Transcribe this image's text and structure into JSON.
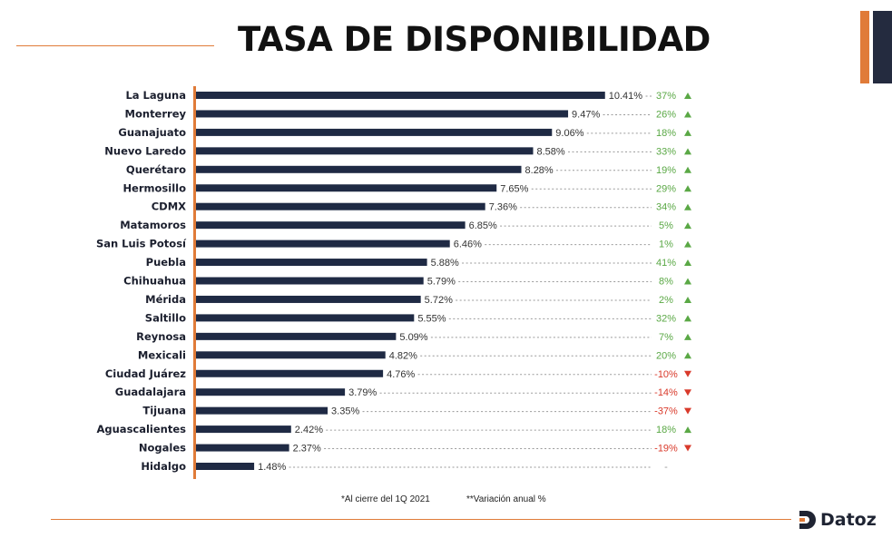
{
  "header": {
    "title": "TASA DE DISPONIBILIDAD"
  },
  "colors": {
    "bar": "#1f2a44",
    "axis": "#e07b39",
    "positive": "#5aa845",
    "negative": "#d93a2b",
    "leader": "#9a9a9a"
  },
  "chart_data": {
    "type": "bar",
    "orientation": "horizontal",
    "title": "TASA DE DISPONIBILIDAD",
    "xlabel": "",
    "ylabel": "",
    "xlim": [
      0,
      11
    ],
    "grid": false,
    "categories": [
      "La Laguna",
      "Monterrey",
      "Guanajuato",
      "Nuevo Laredo",
      "Querétaro",
      "Hermosillo",
      "CDMX",
      "Matamoros",
      "San Luis Potosí",
      "Puebla",
      "Chihuahua",
      "Mérida",
      "Saltillo",
      "Reynosa",
      "Mexicali",
      "Ciudad Juárez",
      "Guadalajara",
      "Tijuana",
      "Aguascalientes",
      "Nogales",
      "Hidalgo"
    ],
    "values": [
      10.41,
      9.47,
      9.06,
      8.58,
      8.28,
      7.65,
      7.36,
      6.85,
      6.46,
      5.88,
      5.79,
      5.72,
      5.55,
      5.09,
      4.82,
      4.76,
      3.79,
      3.35,
      2.42,
      2.37,
      1.48
    ],
    "value_labels": [
      "10.41%",
      "9.47%",
      "9.06%",
      "8.58%",
      "8.28%",
      "7.65%",
      "7.36%",
      "6.85%",
      "6.46%",
      "5.88%",
      "5.79%",
      "5.72%",
      "5.55%",
      "5.09%",
      "4.82%",
      "4.76%",
      "3.79%",
      "3.35%",
      "2.42%",
      "2.37%",
      "1.48%"
    ],
    "annual_change": [
      37,
      26,
      18,
      33,
      19,
      29,
      34,
      5,
      1,
      41,
      8,
      2,
      32,
      7,
      20,
      -10,
      -14,
      -37,
      18,
      -19,
      null
    ],
    "annual_change_labels": [
      "37%",
      "26%",
      "18%",
      "33%",
      "19%",
      "29%",
      "34%",
      "5%",
      "1%",
      "41%",
      "8%",
      "2%",
      "32%",
      "7%",
      "20%",
      "-10%",
      "-14%",
      "-37%",
      "18%",
      "-19%",
      "-"
    ]
  },
  "footnotes": {
    "note1": "*Al cierre del 1Q 2021",
    "note2": "**Variación anual %"
  },
  "logo": {
    "name": "Datoz",
    "icon": "datoz-logo-icon"
  }
}
